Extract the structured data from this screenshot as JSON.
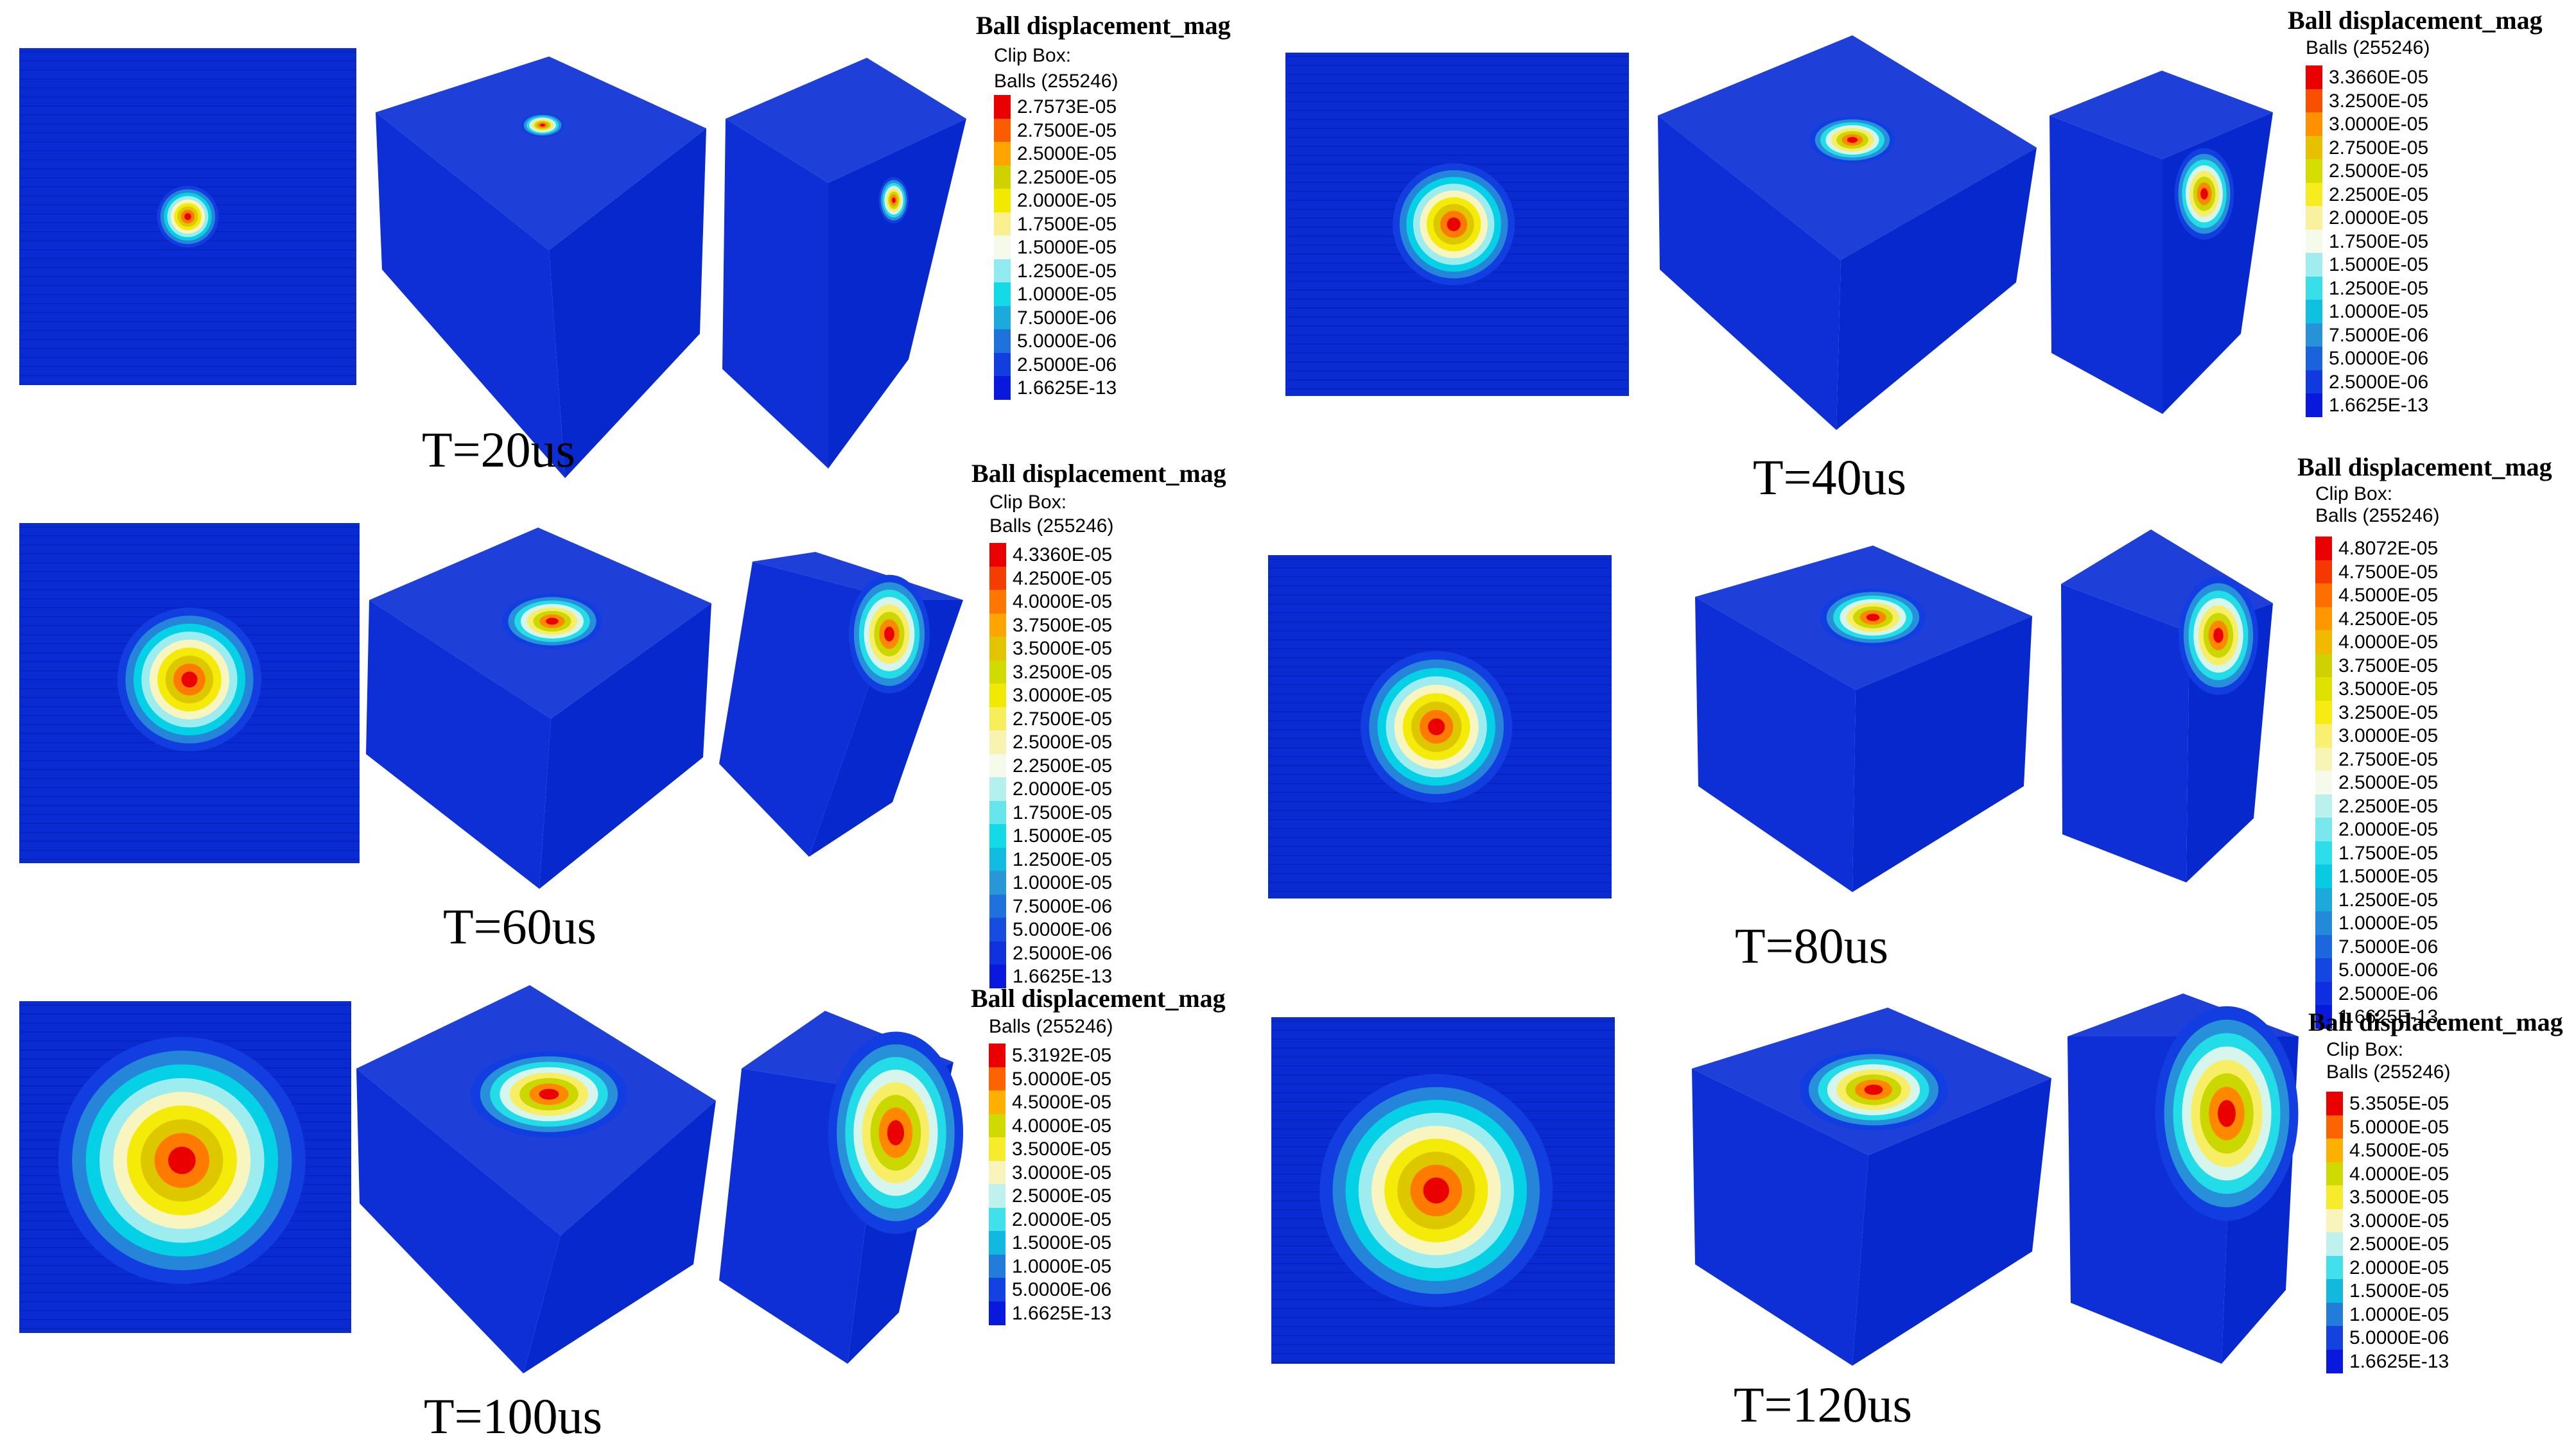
{
  "legend": {
    "title": "Ball displacement_mag",
    "clip": "Clip Box:",
    "balls": "Balls (255246)"
  },
  "panels": [
    {
      "caption": "T=20us",
      "clip_shown": true,
      "values": [
        "2.7573E-05",
        "2.7500E-05",
        "2.5000E-05",
        "2.2500E-05",
        "2.0000E-05",
        "1.7500E-05",
        "1.5000E-05",
        "1.2500E-05",
        "1.0000E-05",
        "7.5000E-06",
        "5.0000E-06",
        "2.5000E-06",
        "1.6625E-13"
      ]
    },
    {
      "caption": "T=40us",
      "clip_shown": false,
      "values": [
        "3.3660E-05",
        "3.2500E-05",
        "3.0000E-05",
        "2.7500E-05",
        "2.5000E-05",
        "2.2500E-05",
        "2.0000E-05",
        "1.7500E-05",
        "1.5000E-05",
        "1.2500E-05",
        "1.0000E-05",
        "7.5000E-06",
        "5.0000E-06",
        "2.5000E-06",
        "1.6625E-13"
      ]
    },
    {
      "caption": "T=60us",
      "clip_shown": true,
      "values": [
        "4.3360E-05",
        "4.2500E-05",
        "4.0000E-05",
        "3.7500E-05",
        "3.5000E-05",
        "3.2500E-05",
        "3.0000E-05",
        "2.7500E-05",
        "2.5000E-05",
        "2.2500E-05",
        "2.0000E-05",
        "1.7500E-05",
        "1.5000E-05",
        "1.2500E-05",
        "1.0000E-05",
        "7.5000E-06",
        "5.0000E-06",
        "2.5000E-06",
        "1.6625E-13"
      ]
    },
    {
      "caption": "T=80us",
      "clip_shown": true,
      "values": [
        "4.8072E-05",
        "4.7500E-05",
        "4.5000E-05",
        "4.2500E-05",
        "4.0000E-05",
        "3.7500E-05",
        "3.5000E-05",
        "3.2500E-05",
        "3.0000E-05",
        "2.7500E-05",
        "2.5000E-05",
        "2.2500E-05",
        "2.0000E-05",
        "1.7500E-05",
        "1.5000E-05",
        "1.2500E-05",
        "1.0000E-05",
        "7.5000E-06",
        "5.0000E-06",
        "2.5000E-06",
        "1.6625E-13"
      ]
    },
    {
      "caption": "T=100us",
      "clip_shown": false,
      "values": [
        "5.3192E-05",
        "5.0000E-05",
        "4.5000E-05",
        "4.0000E-05",
        "3.5000E-05",
        "3.0000E-05",
        "2.5000E-05",
        "2.0000E-05",
        "1.5000E-05",
        "1.0000E-05",
        "5.0000E-06",
        "1.6625E-13"
      ]
    },
    {
      "caption": "T=120us",
      "clip_shown": true,
      "values": [
        "5.3505E-05",
        "5.0000E-05",
        "4.5000E-05",
        "4.0000E-05",
        "3.5000E-05",
        "3.0000E-05",
        "2.5000E-05",
        "2.0000E-05",
        "1.5000E-05",
        "1.0000E-05",
        "5.0000E-06",
        "1.6625E-13"
      ]
    }
  ]
}
